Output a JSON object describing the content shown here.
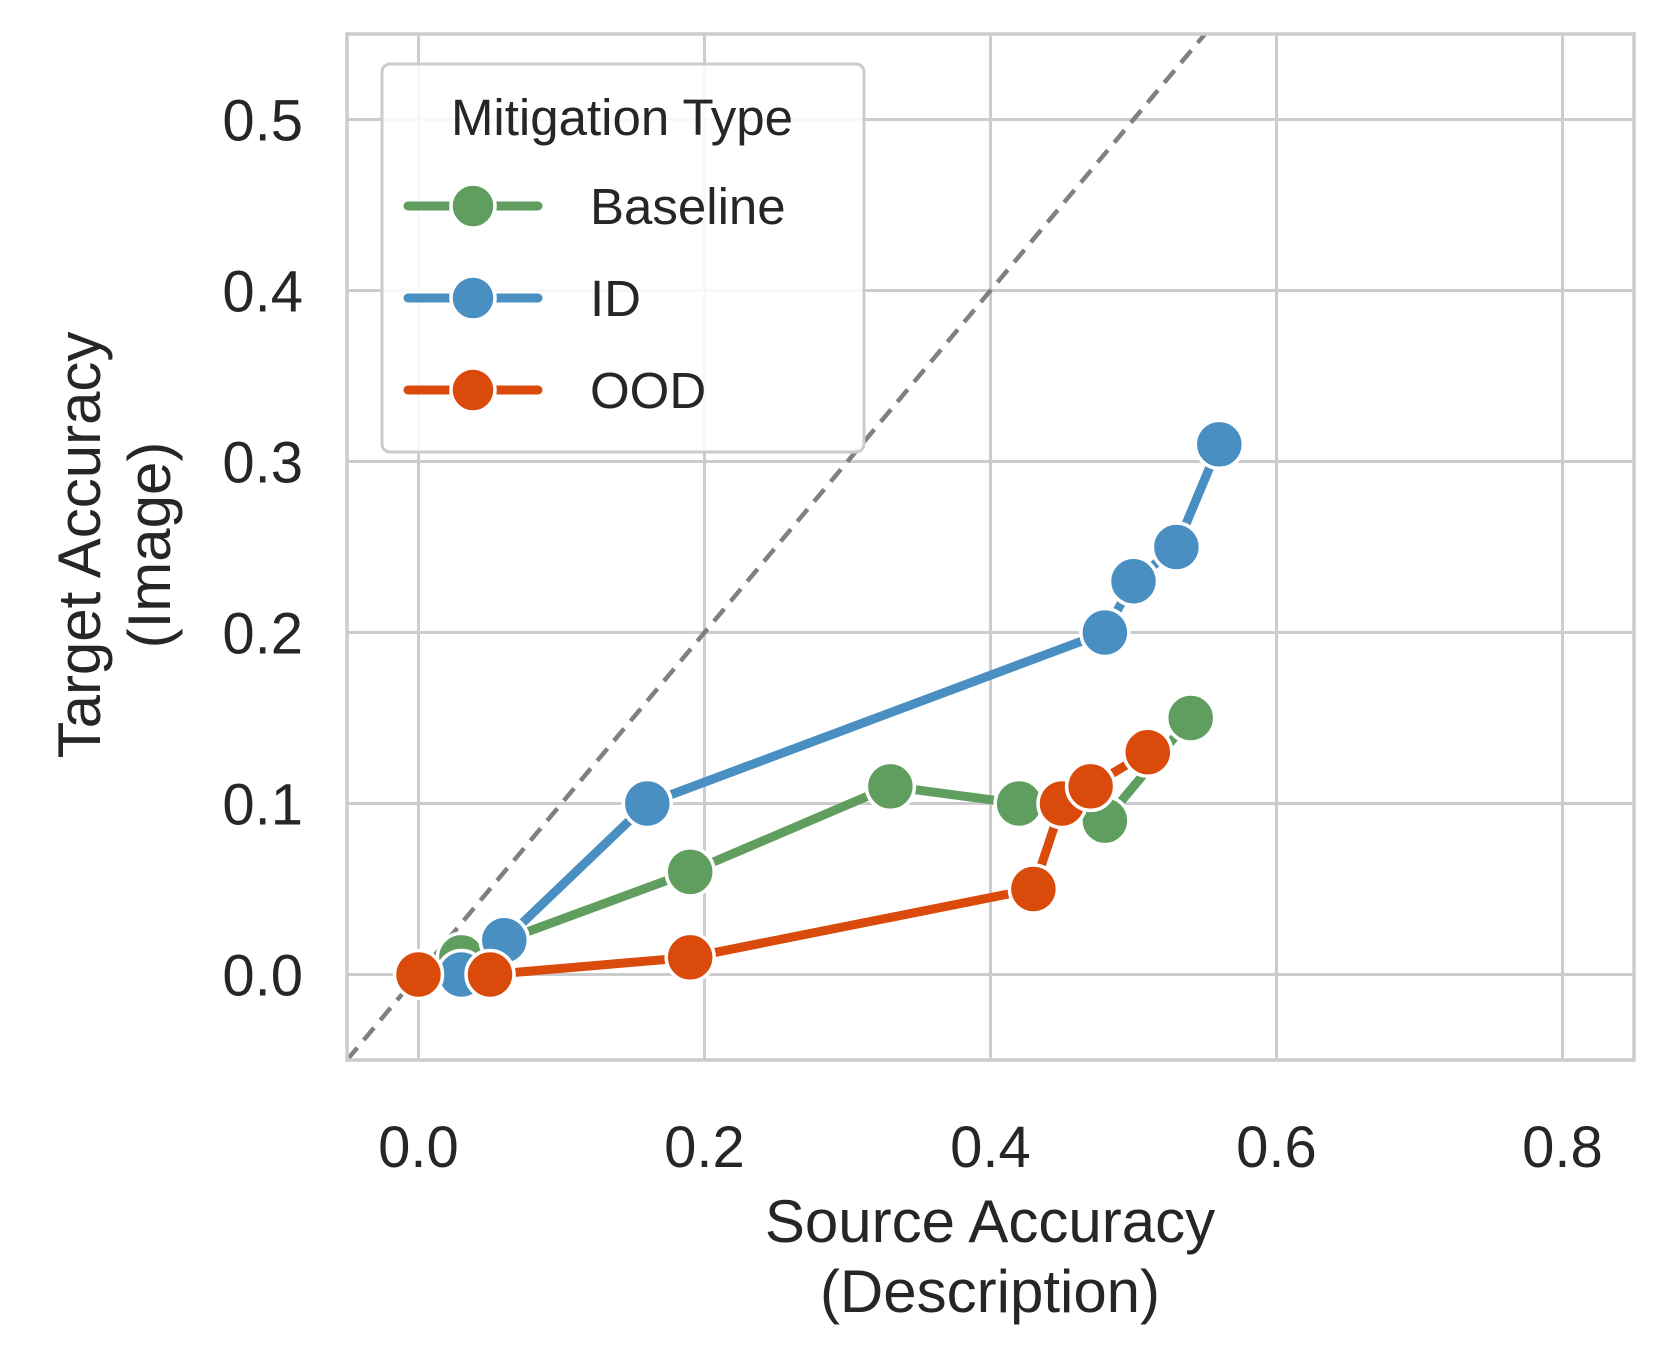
{
  "chart_data": {
    "type": "line",
    "title": "",
    "xlabel": [
      "Source Accuracy",
      "(Description)"
    ],
    "ylabel": [
      "Target Accuracy",
      "(Image)"
    ],
    "xlim": [
      -0.05,
      0.85
    ],
    "ylim": [
      -0.05,
      0.55
    ],
    "xticks": [
      0.0,
      0.2,
      0.4,
      0.6,
      0.8
    ],
    "yticks": [
      0.0,
      0.1,
      0.2,
      0.3,
      0.4,
      0.5
    ],
    "xtick_labels": [
      "0.0",
      "0.2",
      "0.4",
      "0.6",
      "0.8"
    ],
    "ytick_labels": [
      "0.0",
      "0.1",
      "0.2",
      "0.3",
      "0.4",
      "0.5"
    ],
    "grid": true,
    "reference_line": "y = x",
    "legend": {
      "title": "Mitigation Type",
      "location": "top-left"
    },
    "series": [
      {
        "name": "Baseline",
        "color": "#5f9e5f",
        "points": [
          [
            0.03,
            0.01
          ],
          [
            0.06,
            0.02
          ],
          [
            0.19,
            0.06
          ],
          [
            0.33,
            0.11
          ],
          [
            0.42,
            0.1
          ],
          [
            0.48,
            0.09
          ],
          [
            0.54,
            0.15
          ]
        ]
      },
      {
        "name": "ID",
        "color": "#4a8fc2",
        "points": [
          [
            0.03,
            0.0
          ],
          [
            0.06,
            0.02
          ],
          [
            0.16,
            0.1
          ],
          [
            0.48,
            0.2
          ],
          [
            0.5,
            0.23
          ],
          [
            0.53,
            0.25
          ],
          [
            0.56,
            0.31
          ]
        ]
      },
      {
        "name": "OOD",
        "color": "#d94a0b",
        "points": [
          [
            0.0,
            0.0
          ],
          [
            0.05,
            0.0
          ],
          [
            0.19,
            0.01
          ],
          [
            0.43,
            0.05
          ],
          [
            0.45,
            0.1
          ],
          [
            0.47,
            0.11
          ],
          [
            0.51,
            0.13
          ]
        ]
      }
    ]
  }
}
